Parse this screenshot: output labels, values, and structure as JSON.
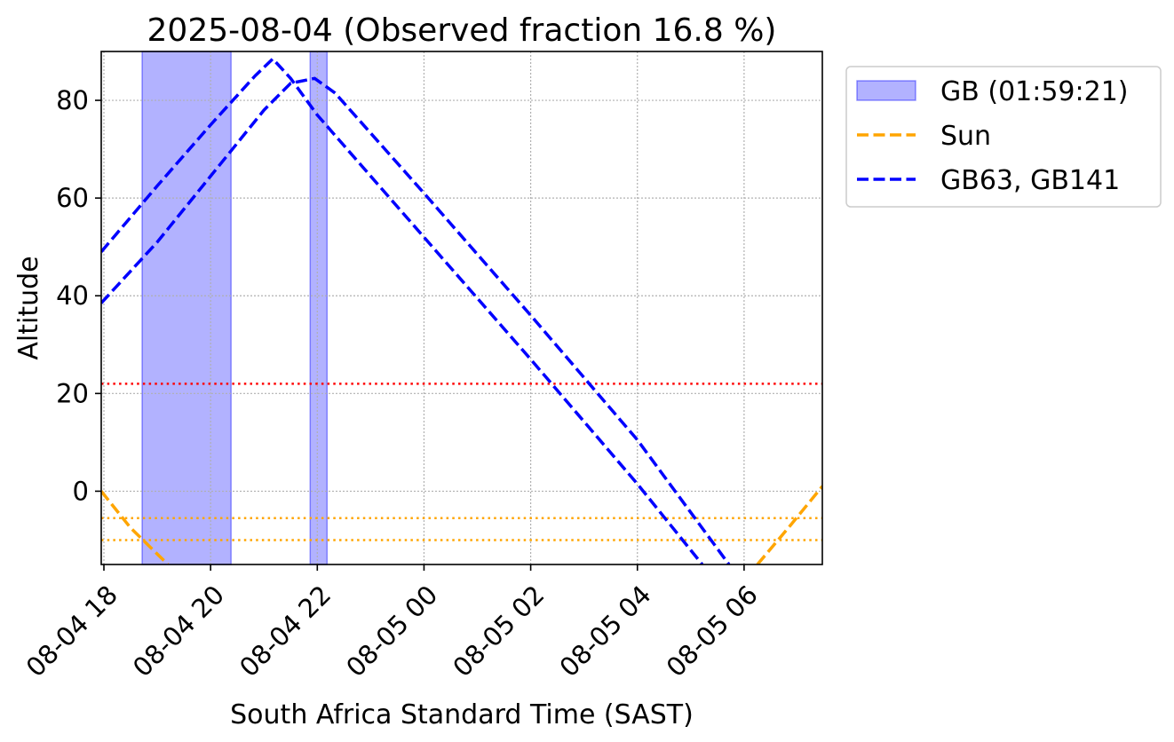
{
  "chart_data": {
    "type": "line",
    "title": "2025-08-04 (Observed fraction 16.8 %)",
    "xlabel": "South Africa Standard Time (SAST)",
    "ylabel": "Altitude",
    "x_unit": "datetime (SAST)",
    "xlim": [
      "2025-08-04 17:57",
      "2025-08-05 07:28"
    ],
    "ylim": [
      -15,
      90
    ],
    "xticks": [
      {
        "value": "2025-08-04 18:00",
        "label": "08-04 18"
      },
      {
        "value": "2025-08-04 20:00",
        "label": "08-04 20"
      },
      {
        "value": "2025-08-04 22:00",
        "label": "08-04 22"
      },
      {
        "value": "2025-08-05 00:00",
        "label": "08-05 00"
      },
      {
        "value": "2025-08-05 02:00",
        "label": "08-05 02"
      },
      {
        "value": "2025-08-05 04:00",
        "label": "08-05 04"
      },
      {
        "value": "2025-08-05 06:00",
        "label": "08-05 06"
      }
    ],
    "yticks": [
      {
        "value": 0,
        "label": "0"
      },
      {
        "value": 20,
        "label": "20"
      },
      {
        "value": 40,
        "label": "40"
      },
      {
        "value": 60,
        "label": "60"
      },
      {
        "value": 80,
        "label": "80"
      }
    ],
    "grid": true,
    "legend_position": "outside-right-top",
    "legend": [
      {
        "label": "GB (01:59:21)",
        "kind": "patch",
        "color": "#0000ff"
      },
      {
        "label": "Sun",
        "kind": "dashed-line",
        "color": "#ffa500"
      },
      {
        "label": "GB63, GB141",
        "kind": "dashed-line",
        "color": "#0000ff"
      }
    ],
    "observed_spans": [
      {
        "start": "2025-08-04 18:43",
        "end": "2025-08-04 20:23"
      },
      {
        "start": "2025-08-04 21:52",
        "end": "2025-08-04 22:11"
      }
    ],
    "horizontal_lines": [
      {
        "y": 22,
        "color": "#ff0000",
        "style": "dotted"
      },
      {
        "y": -5.5,
        "color": "#ffa500",
        "style": "dotted"
      },
      {
        "y": -10,
        "color": "#ffa500",
        "style": "dotted"
      }
    ],
    "series": [
      {
        "color": "#ffa500",
        "style": "dashed",
        "segments": [
          [
            [
              "2025-08-04 17:57",
              0
            ],
            [
              "2025-08-04 18:30",
              -7.5
            ],
            [
              "2025-08-04 19:12",
              -15
            ]
          ],
          [
            [
              "2025-08-05 06:15",
              -15
            ],
            [
              "2025-08-05 06:52",
              -7
            ],
            [
              "2025-08-05 07:28",
              1
            ]
          ]
        ]
      },
      {
        "color": "#0000ff",
        "style": "dashed",
        "points": [
          [
            "2025-08-04 17:57",
            49
          ],
          [
            "2025-08-04 19:00",
            62.5
          ],
          [
            "2025-08-04 20:00",
            75
          ],
          [
            "2025-08-04 20:50",
            85
          ],
          [
            "2025-08-04 21:10",
            88.5
          ],
          [
            "2025-08-04 21:30",
            84.5
          ],
          [
            "2025-08-04 22:00",
            77
          ],
          [
            "2025-08-05 00:00",
            52
          ],
          [
            "2025-08-05 02:00",
            27
          ],
          [
            "2025-08-05 04:00",
            1.5
          ],
          [
            "2025-08-05 05:13",
            -15
          ]
        ]
      },
      {
        "color": "#0000ff",
        "style": "dashed",
        "points": [
          [
            "2025-08-04 17:57",
            38.5
          ],
          [
            "2025-08-04 19:00",
            51
          ],
          [
            "2025-08-04 20:00",
            64.5
          ],
          [
            "2025-08-04 21:00",
            78
          ],
          [
            "2025-08-04 21:30",
            83.5
          ],
          [
            "2025-08-04 21:57",
            84.5
          ],
          [
            "2025-08-04 22:20",
            81.5
          ],
          [
            "2025-08-05 00:00",
            61
          ],
          [
            "2025-08-05 02:00",
            36
          ],
          [
            "2025-08-05 04:00",
            10.5
          ],
          [
            "2025-08-05 05:43",
            -15
          ]
        ]
      }
    ]
  }
}
